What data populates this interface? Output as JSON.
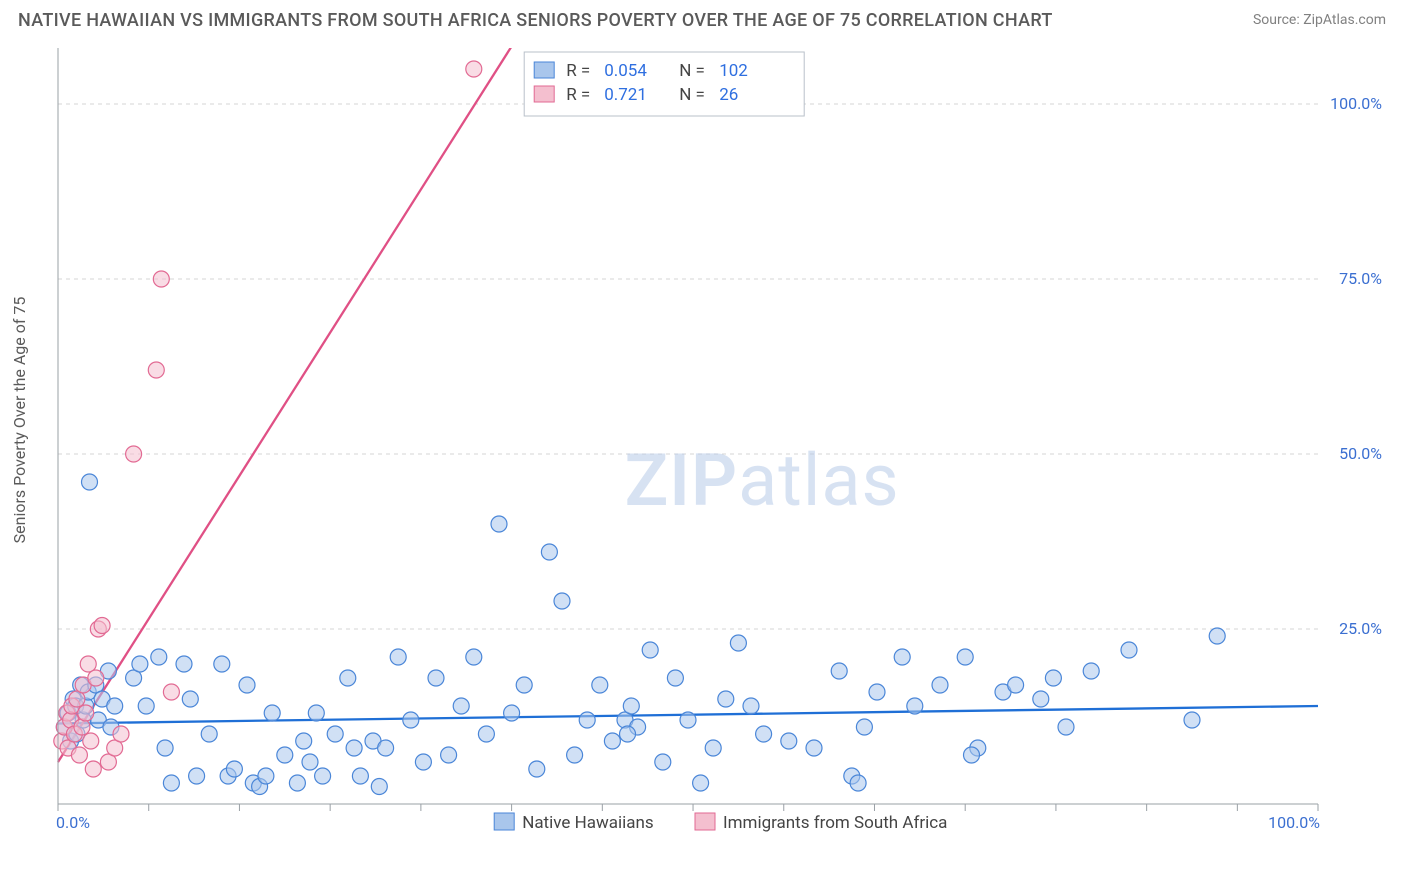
{
  "title": "NATIVE HAWAIIAN VS IMMIGRANTS FROM SOUTH AFRICA SENIORS POVERTY OVER THE AGE OF 75 CORRELATION CHART",
  "source_label": "Source: ZipAtlas.com",
  "yaxis_label": "Seniors Poverty Over the Age of 75",
  "watermark": {
    "zip": "ZIP",
    "rest": "atlas"
  },
  "chart": {
    "type": "scatter-with-regression",
    "background_color": "#ffffff",
    "grid_color": "#d6d6d6",
    "axis_color": "#9aa0a6",
    "xlim": [
      0,
      100
    ],
    "ylim": [
      0,
      108
    ],
    "x_ticks": [
      0,
      7.2,
      14.4,
      21.6,
      28.8,
      36.0,
      43.2,
      50.4,
      57.6,
      64.8,
      72.0,
      79.2,
      86.4,
      93.6,
      100
    ],
    "y_gridlines": [
      25,
      50,
      75,
      100
    ],
    "x_tick_labels": {
      "0": "0.0%",
      "100": "100.0%"
    },
    "y_tick_labels": {
      "25": "25.0%",
      "50": "50.0%",
      "75": "75.0%",
      "100": "100.0%"
    },
    "marker_radius": 8,
    "marker_stroke_width": 1.2,
    "trend_line_width": 2.3,
    "series": [
      {
        "name": "Native Hawaiians",
        "fill_color": "#a9c6ec",
        "stroke_color": "#4a86d8",
        "fill_opacity": 0.55,
        "trend_color": "#1f6fd6",
        "R": "0.054",
        "N": "102",
        "trend": {
          "y_at_x0": 11.5,
          "y_at_x100": 14.0
        },
        "points": [
          [
            0.5,
            11
          ],
          [
            0.8,
            13
          ],
          [
            1.0,
            9
          ],
          [
            1.2,
            15
          ],
          [
            1.4,
            14
          ],
          [
            1.5,
            10
          ],
          [
            1.8,
            17
          ],
          [
            2.0,
            12
          ],
          [
            2.2,
            14
          ],
          [
            2.4,
            16
          ],
          [
            2.5,
            46
          ],
          [
            3.0,
            17
          ],
          [
            3.2,
            12
          ],
          [
            3.5,
            15
          ],
          [
            4.0,
            19
          ],
          [
            4.2,
            11
          ],
          [
            4.5,
            14
          ],
          [
            6.0,
            18
          ],
          [
            6.5,
            20
          ],
          [
            7.0,
            14
          ],
          [
            8.0,
            21
          ],
          [
            8.5,
            8
          ],
          [
            9.0,
            3
          ],
          [
            10.0,
            20
          ],
          [
            10.5,
            15
          ],
          [
            11.0,
            4
          ],
          [
            12.0,
            10
          ],
          [
            13.0,
            20
          ],
          [
            13.5,
            4
          ],
          [
            14.0,
            5
          ],
          [
            15.0,
            17
          ],
          [
            15.5,
            3
          ],
          [
            16.0,
            2.5
          ],
          [
            16.5,
            4
          ],
          [
            17.0,
            13
          ],
          [
            18.0,
            7
          ],
          [
            19.0,
            3
          ],
          [
            19.5,
            9
          ],
          [
            20.0,
            6
          ],
          [
            20.5,
            13
          ],
          [
            21.0,
            4
          ],
          [
            22.0,
            10
          ],
          [
            23.0,
            18
          ],
          [
            23.5,
            8
          ],
          [
            24.0,
            4
          ],
          [
            25.0,
            9
          ],
          [
            25.5,
            2.5
          ],
          [
            26.0,
            8
          ],
          [
            27.0,
            21
          ],
          [
            28.0,
            12
          ],
          [
            29.0,
            6
          ],
          [
            30.0,
            18
          ],
          [
            31.0,
            7
          ],
          [
            32.0,
            14
          ],
          [
            33.0,
            21
          ],
          [
            34.0,
            10
          ],
          [
            35.0,
            40
          ],
          [
            36.0,
            13
          ],
          [
            37.0,
            17
          ],
          [
            38.0,
            5
          ],
          [
            39.0,
            36
          ],
          [
            40.0,
            29
          ],
          [
            41.0,
            7
          ],
          [
            42.0,
            12
          ],
          [
            43.0,
            17
          ],
          [
            44.0,
            9
          ],
          [
            45.0,
            12
          ],
          [
            45.5,
            14
          ],
          [
            46.0,
            11
          ],
          [
            47.0,
            22
          ],
          [
            48.0,
            6
          ],
          [
            49.0,
            18
          ],
          [
            50.0,
            12
          ],
          [
            51.0,
            3
          ],
          [
            52.0,
            8
          ],
          [
            53.0,
            15
          ],
          [
            54.0,
            23
          ],
          [
            55.0,
            14
          ],
          [
            56.0,
            10
          ],
          [
            58.0,
            9
          ],
          [
            60.0,
            8
          ],
          [
            62.0,
            19
          ],
          [
            63.0,
            4
          ],
          [
            64.0,
            11
          ],
          [
            65.0,
            16
          ],
          [
            67.0,
            21
          ],
          [
            68.0,
            14
          ],
          [
            70.0,
            17
          ],
          [
            72.0,
            21
          ],
          [
            73.0,
            8
          ],
          [
            75.0,
            16
          ],
          [
            76.0,
            17
          ],
          [
            78.0,
            15
          ],
          [
            79.0,
            18
          ],
          [
            80.0,
            11
          ],
          [
            82.0,
            19
          ],
          [
            85.0,
            22
          ],
          [
            90.0,
            12
          ],
          [
            92.0,
            24
          ],
          [
            72.5,
            7
          ],
          [
            63.5,
            3
          ],
          [
            45.2,
            10
          ]
        ]
      },
      {
        "name": "Immigrants from South Africa",
        "fill_color": "#f4bfcf",
        "stroke_color": "#e26a93",
        "fill_opacity": 0.55,
        "trend_color": "#e05085",
        "R": "0.721",
        "N": "26",
        "trend": {
          "y_at_x0": 6.0,
          "y_at_x100": 290.0
        },
        "points": [
          [
            0.3,
            9
          ],
          [
            0.5,
            11
          ],
          [
            0.7,
            13
          ],
          [
            0.8,
            8
          ],
          [
            1.0,
            12
          ],
          [
            1.1,
            14
          ],
          [
            1.3,
            10
          ],
          [
            1.5,
            15
          ],
          [
            1.7,
            7
          ],
          [
            1.9,
            11
          ],
          [
            2.0,
            17
          ],
          [
            2.2,
            13
          ],
          [
            2.4,
            20
          ],
          [
            2.6,
            9
          ],
          [
            2.8,
            5
          ],
          [
            3.0,
            18
          ],
          [
            3.2,
            25
          ],
          [
            3.5,
            25.5
          ],
          [
            4.0,
            6
          ],
          [
            4.5,
            8
          ],
          [
            5.0,
            10
          ],
          [
            6.0,
            50
          ],
          [
            7.8,
            62
          ],
          [
            8.2,
            75
          ],
          [
            9.0,
            16
          ],
          [
            33.0,
            105
          ]
        ]
      }
    ]
  },
  "legend_top": {
    "rows": [
      {
        "swatch_fill": "#a9c6ec",
        "swatch_stroke": "#4a86d8",
        "label_R": "R =",
        "val_R": "0.054",
        "label_N": "N =",
        "val_N": "102"
      },
      {
        "swatch_fill": "#f4bfcf",
        "swatch_stroke": "#e26a93",
        "label_R": "R =",
        "val_R": "0.721",
        "label_N": "N =",
        "val_N": "26"
      }
    ]
  },
  "legend_bottom": {
    "items": [
      {
        "swatch_fill": "#a9c6ec",
        "swatch_stroke": "#4a86d8",
        "label": "Native Hawaiians"
      },
      {
        "swatch_fill": "#f4bfcf",
        "swatch_stroke": "#e26a93",
        "label": "Immigrants from South Africa"
      }
    ]
  }
}
